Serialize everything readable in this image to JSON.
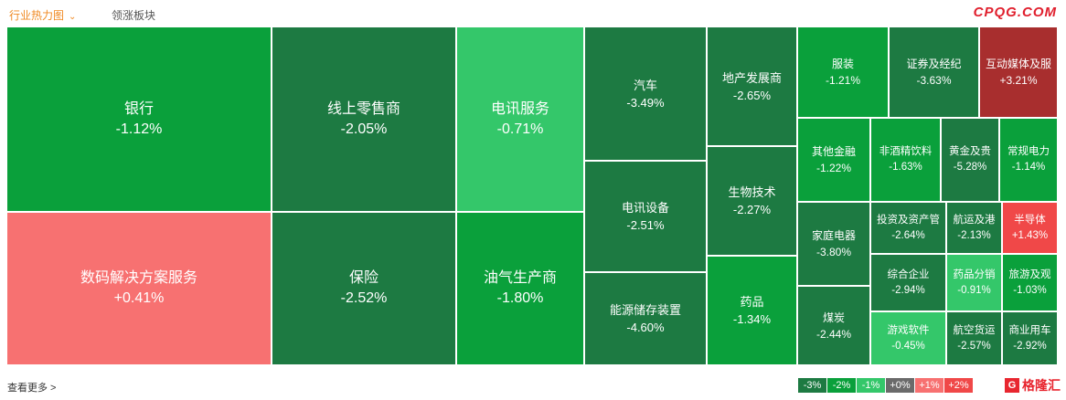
{
  "header": {
    "tab_industry": "行业热力图",
    "tab_leading": "领涨板块",
    "watermark": "CPQG.COM"
  },
  "colors": {
    "deep_green": "#1d7a42",
    "green": "#0aa03b",
    "mid_green": "#21b650",
    "light_green": "#34c76a",
    "pale_red": "#f77171",
    "red": "#f04848",
    "dark_red": "#a82e2e",
    "gray": "#6a6a6a"
  },
  "tiles": [
    {
      "name": "银行",
      "change": "-1.12%",
      "color": "#0aa03b"
    },
    {
      "name": "数码解决方案服务",
      "change": "+0.41%",
      "color": "#f77171"
    },
    {
      "name": "线上零售商",
      "change": "-2.05%",
      "color": "#1d7a42"
    },
    {
      "name": "保险",
      "change": "-2.52%",
      "color": "#1d7a42"
    },
    {
      "name": "电讯服务",
      "change": "-0.71%",
      "color": "#34c76a"
    },
    {
      "name": "油气生产商",
      "change": "-1.80%",
      "color": "#0aa03b"
    },
    {
      "name": "汽车",
      "change": "-3.49%",
      "color": "#1d7a42"
    },
    {
      "name": "电讯设备",
      "change": "-2.51%",
      "color": "#1d7a42"
    },
    {
      "name": "能源储存装置",
      "change": "-4.60%",
      "color": "#1d7a42"
    },
    {
      "name": "地产发展商",
      "change": "-2.65%",
      "color": "#1d7a42"
    },
    {
      "name": "生物技术",
      "change": "-2.27%",
      "color": "#1d7a42"
    },
    {
      "name": "药品",
      "change": "-1.34%",
      "color": "#0aa03b"
    },
    {
      "name": "服装",
      "change": "-1.21%",
      "color": "#0aa03b"
    },
    {
      "name": "证券及经纪",
      "change": "-3.63%",
      "color": "#1d7a42"
    },
    {
      "name": "互动媒体及服",
      "change": "+3.21%",
      "color": "#a82e2e"
    },
    {
      "name": "其他金融",
      "change": "-1.22%",
      "color": "#0aa03b"
    },
    {
      "name": "非酒精饮料",
      "change": "-1.63%",
      "color": "#0aa03b"
    },
    {
      "name": "黄金及贵",
      "change": "-5.28%",
      "color": "#1d7a42"
    },
    {
      "name": "常规电力",
      "change": "-1.14%",
      "color": "#0aa03b"
    },
    {
      "name": "家庭电器",
      "change": "-3.80%",
      "color": "#1d7a42"
    },
    {
      "name": "投资及资产管",
      "change": "-2.64%",
      "color": "#1d7a42"
    },
    {
      "name": "航运及港",
      "change": "-2.13%",
      "color": "#1d7a42"
    },
    {
      "name": "半导体",
      "change": "+1.43%",
      "color": "#f04848"
    },
    {
      "name": "综合企业",
      "change": "-2.94%",
      "color": "#1d7a42"
    },
    {
      "name": "药品分销",
      "change": "-0.91%",
      "color": "#34c76a"
    },
    {
      "name": "旅游及观",
      "change": "-1.03%",
      "color": "#0aa03b"
    },
    {
      "name": "煤炭",
      "change": "-2.44%",
      "color": "#1d7a42"
    },
    {
      "name": "游戏软件",
      "change": "-0.45%",
      "color": "#34c76a"
    },
    {
      "name": "航空货运",
      "change": "-2.57%",
      "color": "#1d7a42"
    },
    {
      "name": "商业用车",
      "change": "-2.92%",
      "color": "#1d7a42"
    }
  ],
  "footer": {
    "more_label": "查看更多 >",
    "legend": [
      {
        "label": "-3%",
        "color": "#1d7a42"
      },
      {
        "label": "-2%",
        "color": "#0aa03b"
      },
      {
        "label": "-1%",
        "color": "#34c76a"
      },
      {
        "label": "+0%",
        "color": "#6a6a6a"
      },
      {
        "label": "+1%",
        "color": "#f77171"
      },
      {
        "label": "+2%",
        "color": "#f04848"
      }
    ],
    "logo_mark": "G",
    "logo_text": "格隆汇"
  }
}
